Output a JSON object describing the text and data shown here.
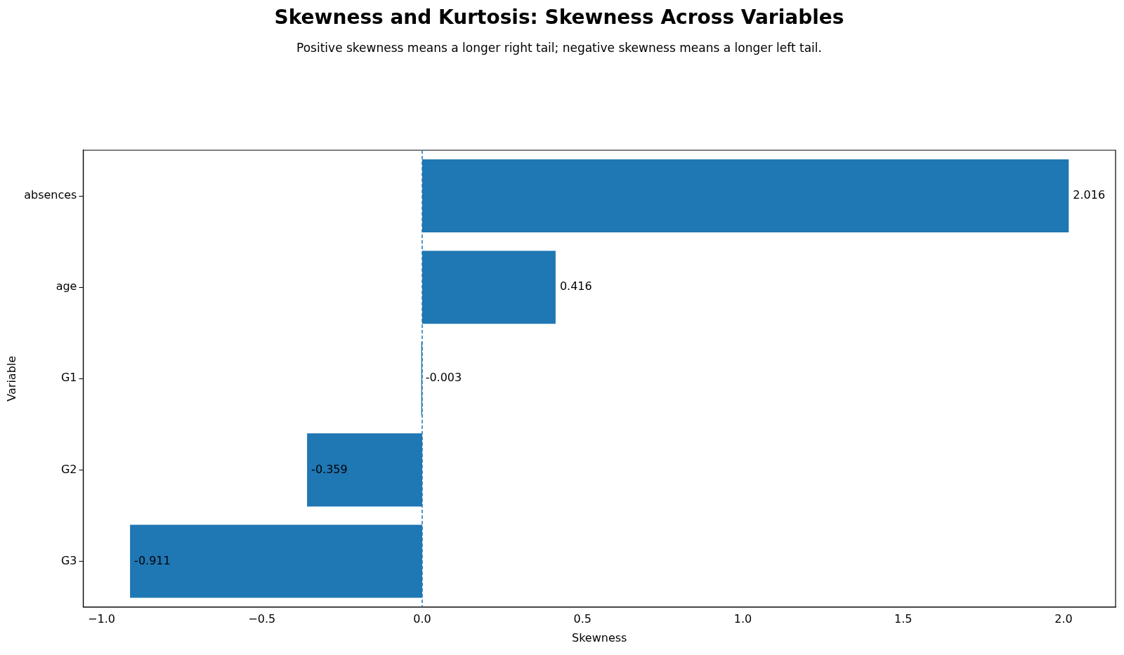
{
  "chart_data": {
    "type": "bar",
    "orientation": "horizontal",
    "title": "Skewness and Kurtosis: Skewness Across Variables",
    "subtitle": "Positive skewness means a longer right tail; negative skewness means a longer left tail.",
    "xlabel": "Skewness",
    "ylabel": "Variable",
    "categories": [
      "absences",
      "age",
      "G1",
      "G2",
      "G3"
    ],
    "values": [
      2.016,
      0.416,
      -0.003,
      -0.359,
      -0.911
    ],
    "color": "#1f77b4",
    "xlim": [
      -1.057,
      2.162
    ],
    "xticks": [
      {
        "value": -1,
        "label": "−1.0"
      },
      {
        "value": -0.5,
        "label": "−0.5"
      },
      {
        "value": 0,
        "label": "0.0"
      },
      {
        "value": 0.5,
        "label": "0.5"
      },
      {
        "value": 1,
        "label": "1.0"
      },
      {
        "value": 1.5,
        "label": "1.5"
      },
      {
        "value": 2,
        "label": "2.0"
      }
    ],
    "ref_lines": [
      {
        "axis": "x",
        "value": 0,
        "color": "#1f77b4",
        "line_style": "dashed"
      }
    ],
    "data_labels": true,
    "grid": false,
    "legend": false
  }
}
